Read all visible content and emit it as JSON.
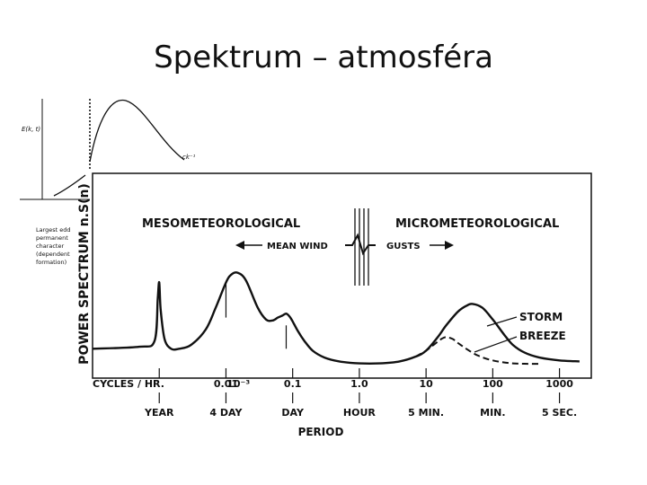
{
  "slide": {
    "title": "Spektrum – atmosféra"
  },
  "inset": {
    "y_label": "E(k, t)",
    "right_label": "ck⁻¹",
    "caption": [
      "Largest edd",
      "permanent",
      "character",
      "(dependent",
      "formation)"
    ]
  },
  "chart_data": {
    "type": "line",
    "title": "",
    "ylabel": "POWER SPECTRUM n.S(n)",
    "xlabel": "PERIOD",
    "x_scale": "log",
    "x_unit_label": "CYCLES / HR.",
    "xlim": [
      0.0001,
      3000
    ],
    "y_scale": "relative",
    "ylim": [
      0,
      1
    ],
    "grid": false,
    "x_ticks": [
      {
        "x": 0.001,
        "label": "10⁻³",
        "period": "YEAR"
      },
      {
        "x": 0.01,
        "label": "0.01",
        "period": "4 DAY"
      },
      {
        "x": 0.1,
        "label": "0.1",
        "period": "DAY"
      },
      {
        "x": 1,
        "label": "1.0",
        "period": "HOUR"
      },
      {
        "x": 10,
        "label": "10",
        "period": "5 MIN."
      },
      {
        "x": 100,
        "label": "100",
        "period": "MIN."
      },
      {
        "x": 1000,
        "label": "1000",
        "period": "5 SEC."
      }
    ],
    "regions": [
      {
        "label": "MESOMETEOROLOGICAL"
      },
      {
        "label": "MICROMETEOROLOGICAL"
      }
    ],
    "annotations": [
      "MEAN WIND",
      "GUSTS"
    ],
    "series": [
      {
        "name": "STORM",
        "style": "solid",
        "x": [
          0.0001,
          0.0005,
          0.00085,
          0.00095,
          0.001,
          0.00105,
          0.0012,
          0.0015,
          0.002,
          0.003,
          0.005,
          0.007,
          0.01,
          0.012,
          0.015,
          0.02,
          0.03,
          0.04,
          0.05,
          0.06,
          0.07,
          0.08,
          0.09,
          0.1,
          0.12,
          0.15,
          0.2,
          0.3,
          0.5,
          1,
          2,
          4,
          7,
          10,
          15,
          20,
          30,
          40,
          50,
          70,
          100,
          150,
          200,
          300,
          500,
          1000,
          2000
        ],
        "y": [
          0.1,
          0.11,
          0.14,
          0.36,
          0.44,
          0.3,
          0.15,
          0.1,
          0.1,
          0.12,
          0.2,
          0.31,
          0.44,
          0.48,
          0.49,
          0.45,
          0.31,
          0.25,
          0.245,
          0.26,
          0.27,
          0.28,
          0.265,
          0.24,
          0.19,
          0.14,
          0.09,
          0.055,
          0.035,
          0.025,
          0.025,
          0.035,
          0.06,
          0.09,
          0.16,
          0.22,
          0.29,
          0.32,
          0.33,
          0.31,
          0.25,
          0.17,
          0.12,
          0.08,
          0.055,
          0.04,
          0.035
        ]
      },
      {
        "name": "BREEZE",
        "style": "dashed",
        "x": [
          7,
          10,
          13,
          17,
          20,
          25,
          30,
          40,
          60,
          100,
          200,
          500
        ],
        "y": [
          0.06,
          0.09,
          0.12,
          0.15,
          0.16,
          0.15,
          0.13,
          0.1,
          0.065,
          0.04,
          0.025,
          0.022
        ]
      }
    ]
  }
}
